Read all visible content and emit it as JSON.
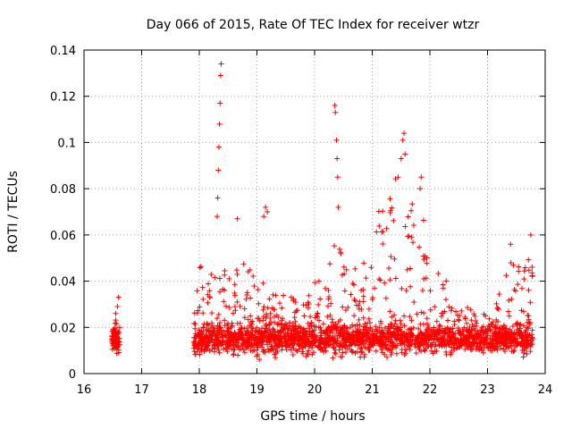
{
  "chart_data": {
    "type": "scatter",
    "title": "Day 066 of 2015, Rate Of TEC Index for receiver wtzr",
    "xlabel": "GPS time / hours",
    "ylabel": "ROTI / TECUs",
    "xlim": [
      16,
      24
    ],
    "ylim": [
      0,
      0.14
    ],
    "grid": true,
    "marker": "+",
    "color": "#ff0000",
    "xticks": [
      "16",
      "17",
      "18",
      "19",
      "20",
      "21",
      "22",
      "23",
      "24"
    ],
    "yticks": [
      "0",
      "0.02",
      "0.04",
      "0.06",
      "0.08",
      "0.1",
      "0.12",
      "0.14"
    ],
    "series": [
      {
        "name": "ROTI",
        "segments": [
          {
            "x_start": 16.48,
            "x_end": 16.62,
            "baseline": 0.015,
            "spread": 0.006,
            "peak": 0.033,
            "count": 70
          },
          {
            "x_start": 17.9,
            "x_end": 23.78,
            "baseline": 0.015,
            "spread": 0.008,
            "count": 2300
          }
        ],
        "envelope": [
          [
            17.9,
            0.028
          ],
          [
            18.0,
            0.045
          ],
          [
            18.1,
            0.055
          ],
          [
            18.2,
            0.045
          ],
          [
            18.3,
            0.04
          ],
          [
            18.4,
            0.05
          ],
          [
            18.6,
            0.045
          ],
          [
            18.8,
            0.05
          ],
          [
            19.0,
            0.045
          ],
          [
            19.2,
            0.035
          ],
          [
            19.5,
            0.035
          ],
          [
            19.8,
            0.03
          ],
          [
            20.0,
            0.04
          ],
          [
            20.2,
            0.045
          ],
          [
            20.4,
            0.06
          ],
          [
            20.6,
            0.05
          ],
          [
            20.8,
            0.05
          ],
          [
            21.0,
            0.06
          ],
          [
            21.2,
            0.08
          ],
          [
            21.4,
            0.085
          ],
          [
            21.6,
            0.07
          ],
          [
            21.8,
            0.08
          ],
          [
            22.0,
            0.06
          ],
          [
            22.2,
            0.045
          ],
          [
            22.5,
            0.03
          ],
          [
            22.8,
            0.028
          ],
          [
            23.0,
            0.025
          ],
          [
            23.2,
            0.035
          ],
          [
            23.4,
            0.05
          ],
          [
            23.6,
            0.045
          ],
          [
            23.78,
            0.055
          ]
        ],
        "spikes": [
          [
            18.38,
            0.134
          ],
          [
            18.37,
            0.129
          ],
          [
            18.36,
            0.117
          ],
          [
            18.35,
            0.108
          ],
          [
            18.34,
            0.098
          ],
          [
            18.33,
            0.088
          ],
          [
            18.32,
            0.076
          ],
          [
            18.31,
            0.068
          ],
          [
            18.66,
            0.067
          ],
          [
            19.15,
            0.072
          ],
          [
            19.18,
            0.07
          ],
          [
            19.12,
            0.068
          ],
          [
            20.35,
            0.116
          ],
          [
            20.36,
            0.113
          ],
          [
            20.38,
            0.101
          ],
          [
            20.39,
            0.093
          ],
          [
            20.4,
            0.085
          ],
          [
            20.41,
            0.072
          ],
          [
            21.55,
            0.104
          ],
          [
            21.53,
            0.101
          ],
          [
            21.5,
            0.093
          ],
          [
            21.57,
            0.095
          ],
          [
            21.45,
            0.085
          ],
          [
            21.85,
            0.085
          ],
          [
            21.83,
            0.08
          ],
          [
            23.75,
            0.06
          ],
          [
            23.4,
            0.056
          ]
        ]
      }
    ]
  }
}
